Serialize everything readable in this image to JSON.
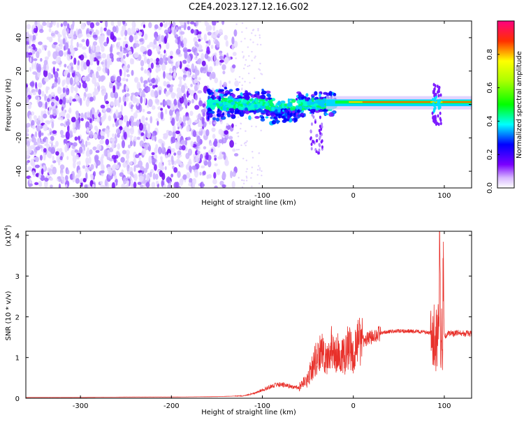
{
  "chart_data": [
    {
      "type": "heatmap",
      "title": "C2E4.2023.127.12.16.G02",
      "xlabel": "Height of straight line (km)",
      "ylabel": "Frequency (Hz)",
      "xlim": [
        -360,
        130
      ],
      "ylim": [
        -50,
        50
      ],
      "x_ticks": [
        -300,
        -200,
        -100,
        0,
        100
      ],
      "y_ticks": [
        -40,
        -20,
        0,
        20,
        40
      ],
      "colorbar": {
        "label": "Normalized spectral amplitude",
        "range": [
          0,
          1
        ],
        "ticks": [
          "0.0",
          "0.2",
          "0.4",
          "0.6",
          "0.8"
        ],
        "colors": [
          "#ffffff",
          "#7a00ff",
          "#0000ff",
          "#00ffff",
          "#00ff00",
          "#ffff00",
          "#ff0000",
          "#ff0080"
        ]
      },
      "grid": false
    },
    {
      "type": "line",
      "xlabel": "Height of straight line (km)",
      "ylabel": "SNR (10 * v/v)",
      "yscale_label": "(x10",
      "yscale_exp": "4",
      "yscale_close": ")",
      "xlim": [
        -360,
        130
      ],
      "ylim": [
        0,
        4.1
      ],
      "x_ticks": [
        -300,
        -200,
        -100,
        0,
        100
      ],
      "y_ticks": [
        0,
        1,
        2,
        3,
        4
      ],
      "line_color": "#e8302a",
      "series": [
        {
          "x": [
            -360,
            -300,
            -250,
            -200,
            -150,
            -120,
            -110,
            -100,
            -90,
            -80,
            -70,
            -60,
            -50,
            -45,
            -40,
            -35,
            -30,
            -25,
            -20,
            -15,
            -10,
            -5,
            0,
            5,
            10,
            15,
            20,
            30,
            40,
            50,
            60,
            70,
            80,
            85,
            90,
            92,
            94,
            95,
            96,
            97,
            98,
            99,
            100,
            102,
            105,
            110,
            115,
            120,
            125,
            130
          ],
          "values": [
            0.02,
            0.02,
            0.03,
            0.03,
            0.04,
            0.06,
            0.12,
            0.2,
            0.3,
            0.35,
            0.3,
            0.25,
            0.45,
            0.8,
            1.0,
            1.2,
            0.9,
            1.3,
            1.0,
            1.2,
            1.0,
            1.3,
            1.05,
            1.35,
            1.4,
            1.45,
            1.5,
            1.6,
            1.64,
            1.65,
            1.65,
            1.64,
            1.62,
            1.6,
            1.55,
            1.3,
            1.8,
            4.05,
            0.6,
            1.4,
            0.7,
            3.7,
            1.5,
            1.55,
            1.6,
            1.58,
            1.6,
            1.58,
            1.6,
            1.58
          ]
        }
      ]
    }
  ]
}
